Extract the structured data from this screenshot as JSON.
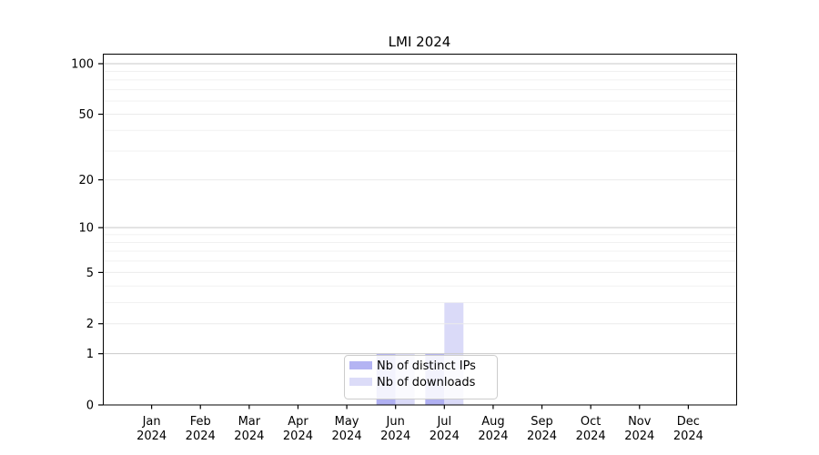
{
  "figure": {
    "title": "LMI 2024",
    "background": "#ffffff"
  },
  "chart_data": {
    "type": "bar",
    "title": "LMI 2024",
    "categories": [
      "Jan 2024",
      "Feb 2024",
      "Mar 2024",
      "Apr 2024",
      "May 2024",
      "Jun 2024",
      "Jul 2024",
      "Aug 2024",
      "Sep 2024",
      "Oct 2024",
      "Nov 2024",
      "Dec 2024"
    ],
    "series": [
      {
        "name": "Nb of distinct IPs",
        "color": "#b0b0f2",
        "values": [
          0,
          0,
          0,
          0,
          0,
          1,
          1,
          0,
          0,
          0,
          0,
          0
        ]
      },
      {
        "name": "Nb of downloads",
        "color": "#dadaf8",
        "values": [
          0,
          0,
          0,
          0,
          0,
          1,
          3,
          0,
          0,
          0,
          0,
          0
        ]
      }
    ],
    "yscale": "log1p",
    "ylim": [
      0,
      115
    ],
    "yticks": [
      0,
      1,
      2,
      5,
      10,
      20,
      50,
      100
    ],
    "minor_gridline_values": [
      3,
      4,
      6,
      7,
      8,
      9,
      30,
      40,
      60,
      70,
      80,
      90
    ],
    "grid": "horizontal",
    "legend_position": "lower center",
    "xlabel": "",
    "ylabel": ""
  },
  "style": {
    "spine_color": "#000000",
    "major_grid_color": "#c9c9c9",
    "mid_grid_color": "#ebebeb",
    "minor_grid_color": "#f1f1f1",
    "legend_border_color": "#cccccc",
    "legend_bg_color": "#ffffff"
  }
}
